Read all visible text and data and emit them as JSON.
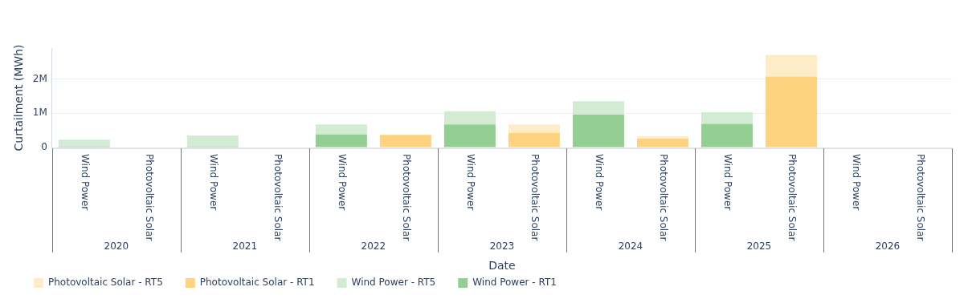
{
  "chart_data": {
    "type": "bar",
    "stacked": true,
    "xlabel": "Date",
    "ylabel": "Curtailment (MWh)",
    "categories": [
      "Wind Power",
      "Photovoltaic Solar",
      "Wind Power",
      "Photovoltaic Solar",
      "Wind Power",
      "Photovoltaic Solar",
      "Wind Power",
      "Photovoltaic Solar",
      "Wind Power",
      "Photovoltaic Solar",
      "Wind Power",
      "Photovoltaic Solar",
      "Wind Power",
      "Photovoltaic Solar"
    ],
    "annotations": [
      "2020",
      "2021",
      "2022",
      "2023",
      "2024",
      "2025",
      "2026"
    ],
    "series": [
      {
        "name": "Wind Power - RT1",
        "color": "#93cf93",
        "values": [
          30000,
          0,
          30000,
          0,
          380000,
          0,
          670000,
          0,
          960000,
          0,
          690000,
          0,
          0,
          0
        ]
      },
      {
        "name": "Wind Power - RT5",
        "color": "#d3ebd3",
        "values": [
          200000,
          0,
          320000,
          0,
          290000,
          0,
          390000,
          0,
          390000,
          0,
          340000,
          0,
          0,
          0
        ]
      },
      {
        "name": "Photovoltaic Solar - RT1",
        "color": "#fed37f",
        "values": [
          0,
          0,
          0,
          0,
          0,
          370000,
          0,
          420000,
          0,
          260000,
          0,
          2070000,
          0,
          0
        ]
      },
      {
        "name": "Photovoltaic Solar - RT5",
        "color": "#feecc8",
        "values": [
          0,
          0,
          0,
          0,
          0,
          0,
          0,
          250000,
          0,
          70000,
          0,
          630000,
          0,
          0
        ]
      }
    ],
    "ylim": [
      0,
      2900000
    ],
    "yticks": [
      {
        "value": 0,
        "label": "0"
      },
      {
        "value": 1000000,
        "label": "1M"
      },
      {
        "value": 2000000,
        "label": "2M"
      }
    ],
    "grid": "y",
    "legend": "bottom"
  }
}
